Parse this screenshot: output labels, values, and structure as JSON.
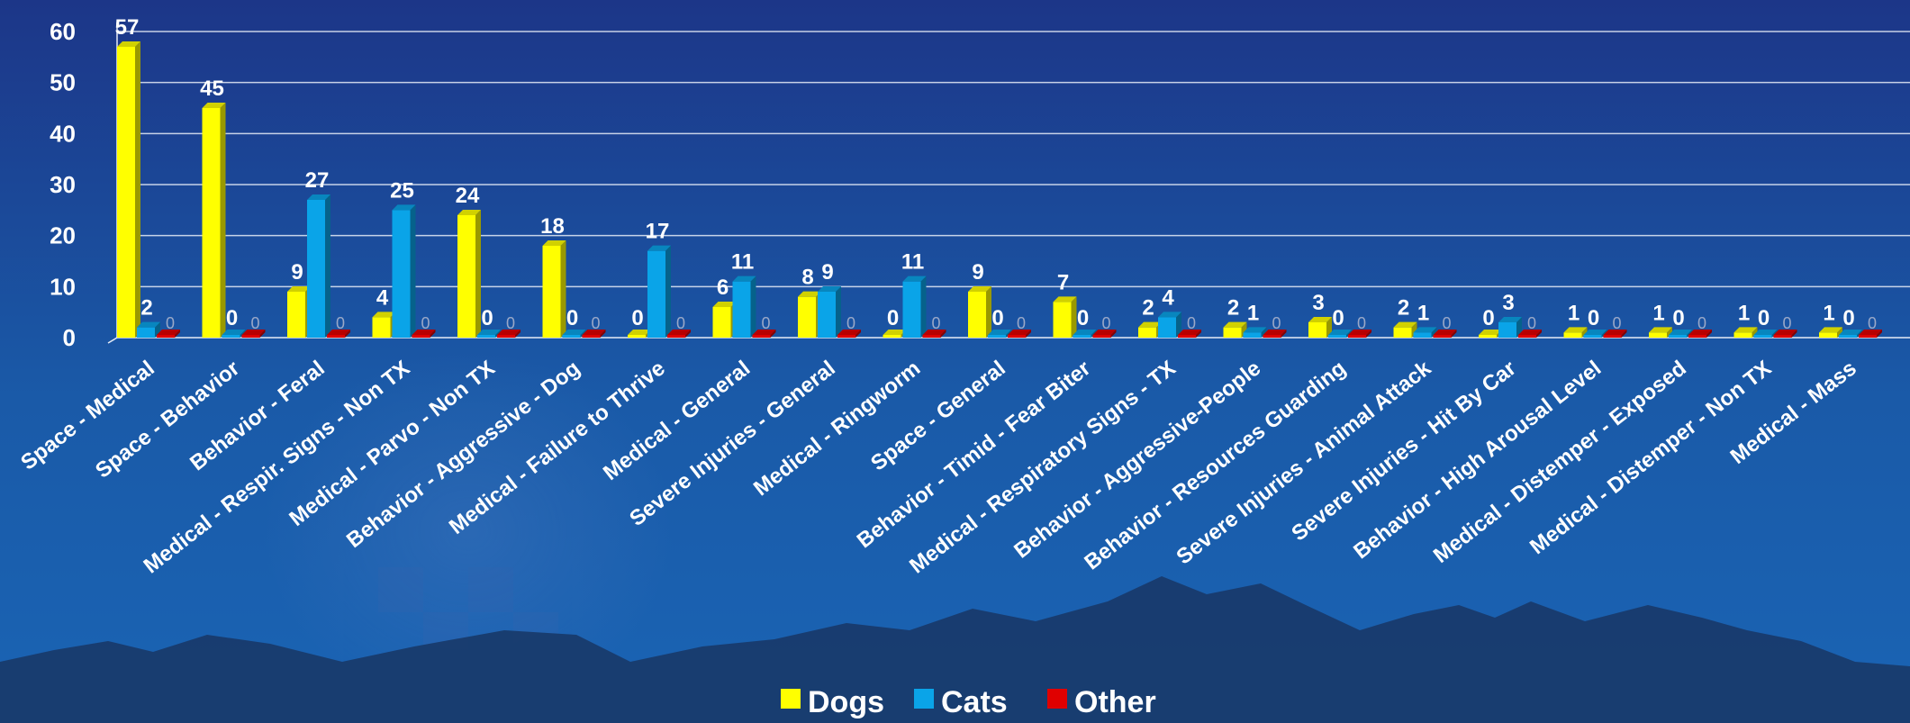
{
  "chart_data": {
    "type": "bar",
    "title": "",
    "xlabel": "",
    "ylabel": "",
    "ylim": [
      0,
      60
    ],
    "yticks": [
      0,
      10,
      20,
      30,
      40,
      50,
      60
    ],
    "grid": true,
    "legend_position": "bottom",
    "categories": [
      "Space - Medical",
      "Space - Behavior",
      "Behavior - Feral",
      "Medical - Respir. Signs - Non TX",
      "Medical - Parvo - Non TX",
      "Behavior - Aggressive - Dog",
      "Medical - Failure to Thrive",
      "Medical - General",
      "Severe Injuries - General",
      "Medical - Ringworm",
      "Space - General",
      "Behavior - Timid - Fear Biter",
      "Medical - Respiratory Signs - TX",
      "Behavior - Aggressive-People",
      "Behavior - Resources Guarding",
      "Severe Injuries - Animal Attack",
      "Severe Injuries - Hit By Car",
      "Behavior - High Arousal Level",
      "Medical - Distemper - Exposed",
      "Medical - Distemper - Non TX",
      "Medical - Mass"
    ],
    "series": [
      {
        "name": "Dogs",
        "color": "#ffff00",
        "values": [
          57,
          45,
          9,
          4,
          24,
          18,
          0,
          6,
          8,
          0,
          9,
          7,
          2,
          2,
          3,
          2,
          0,
          1,
          1,
          1,
          1
        ]
      },
      {
        "name": "Cats",
        "color": "#0aa4e8",
        "values": [
          2,
          0,
          27,
          25,
          0,
          0,
          17,
          11,
          9,
          11,
          0,
          0,
          4,
          1,
          0,
          1,
          3,
          0,
          0,
          0,
          0
        ]
      },
      {
        "name": "Other",
        "color": "#e00000",
        "values": [
          0,
          0,
          0,
          0,
          0,
          0,
          0,
          0,
          0,
          0,
          0,
          0,
          0,
          0,
          0,
          0,
          0,
          0,
          0,
          0,
          0
        ]
      }
    ]
  }
}
